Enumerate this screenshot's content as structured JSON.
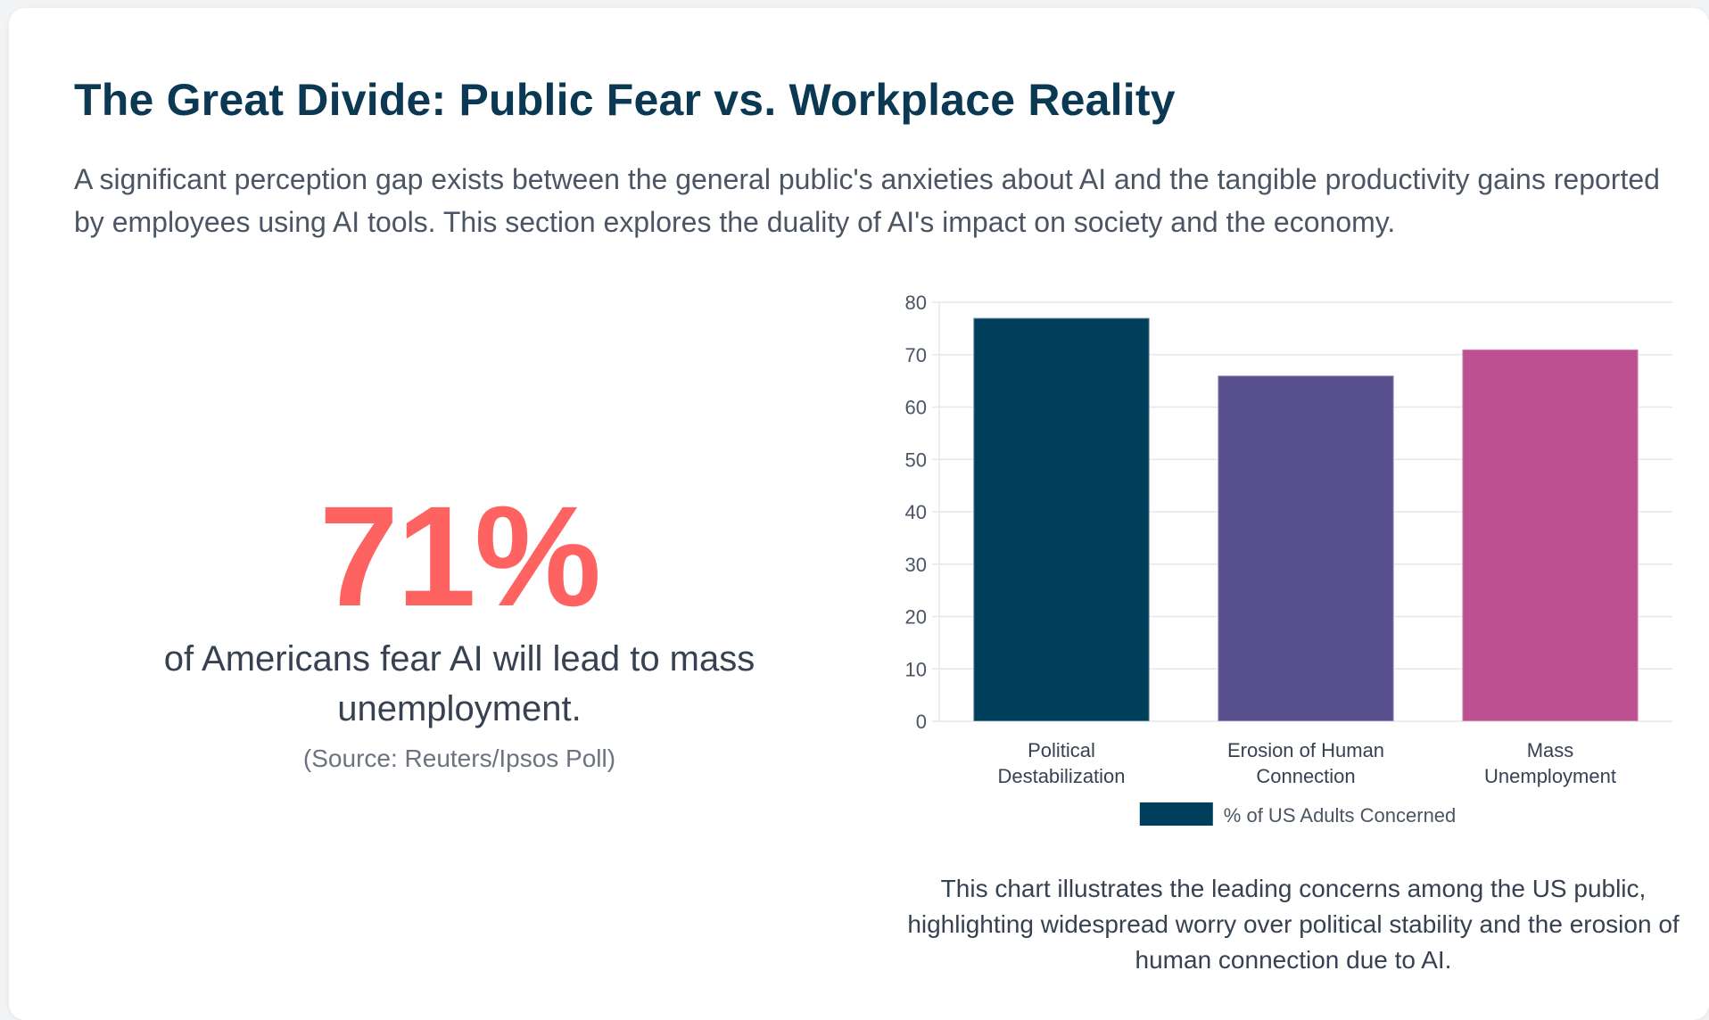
{
  "section": {
    "title": "The Great Divide: Public Fear vs. Workplace Reality",
    "intro": "A significant perception gap exists between the general public's anxieties about AI and the tangible productivity gains reported by employees using AI tools. This section explores the duality of AI's impact on society and the economy."
  },
  "stat": {
    "value": "71%",
    "description": "of Americans fear AI will lead to mass unemployment.",
    "source": "(Source: Reuters/Ipsos Poll)"
  },
  "chart_data": {
    "type": "bar",
    "title": "",
    "xlabel": "",
    "ylabel": "",
    "categories": [
      [
        "Political",
        "Destabilization"
      ],
      [
        "Erosion of Human",
        "Connection"
      ],
      [
        "Mass",
        "Unemployment"
      ]
    ],
    "series": [
      {
        "name": "% of US Adults Concerned",
        "values": [
          77,
          66,
          71
        ]
      }
    ],
    "bar_colors": [
      "#003f5c",
      "#58508d",
      "#bc5090"
    ],
    "legend_color": "#003f5c",
    "ylim": [
      0,
      80
    ],
    "yticks": [
      0,
      10,
      20,
      30,
      40,
      50,
      60,
      70,
      80
    ],
    "grid": true,
    "legend_position": "bottom"
  },
  "chart_caption": "This chart illustrates the leading concerns among the US public, highlighting widespread worry over political stability and the erosion of human connection due to AI."
}
